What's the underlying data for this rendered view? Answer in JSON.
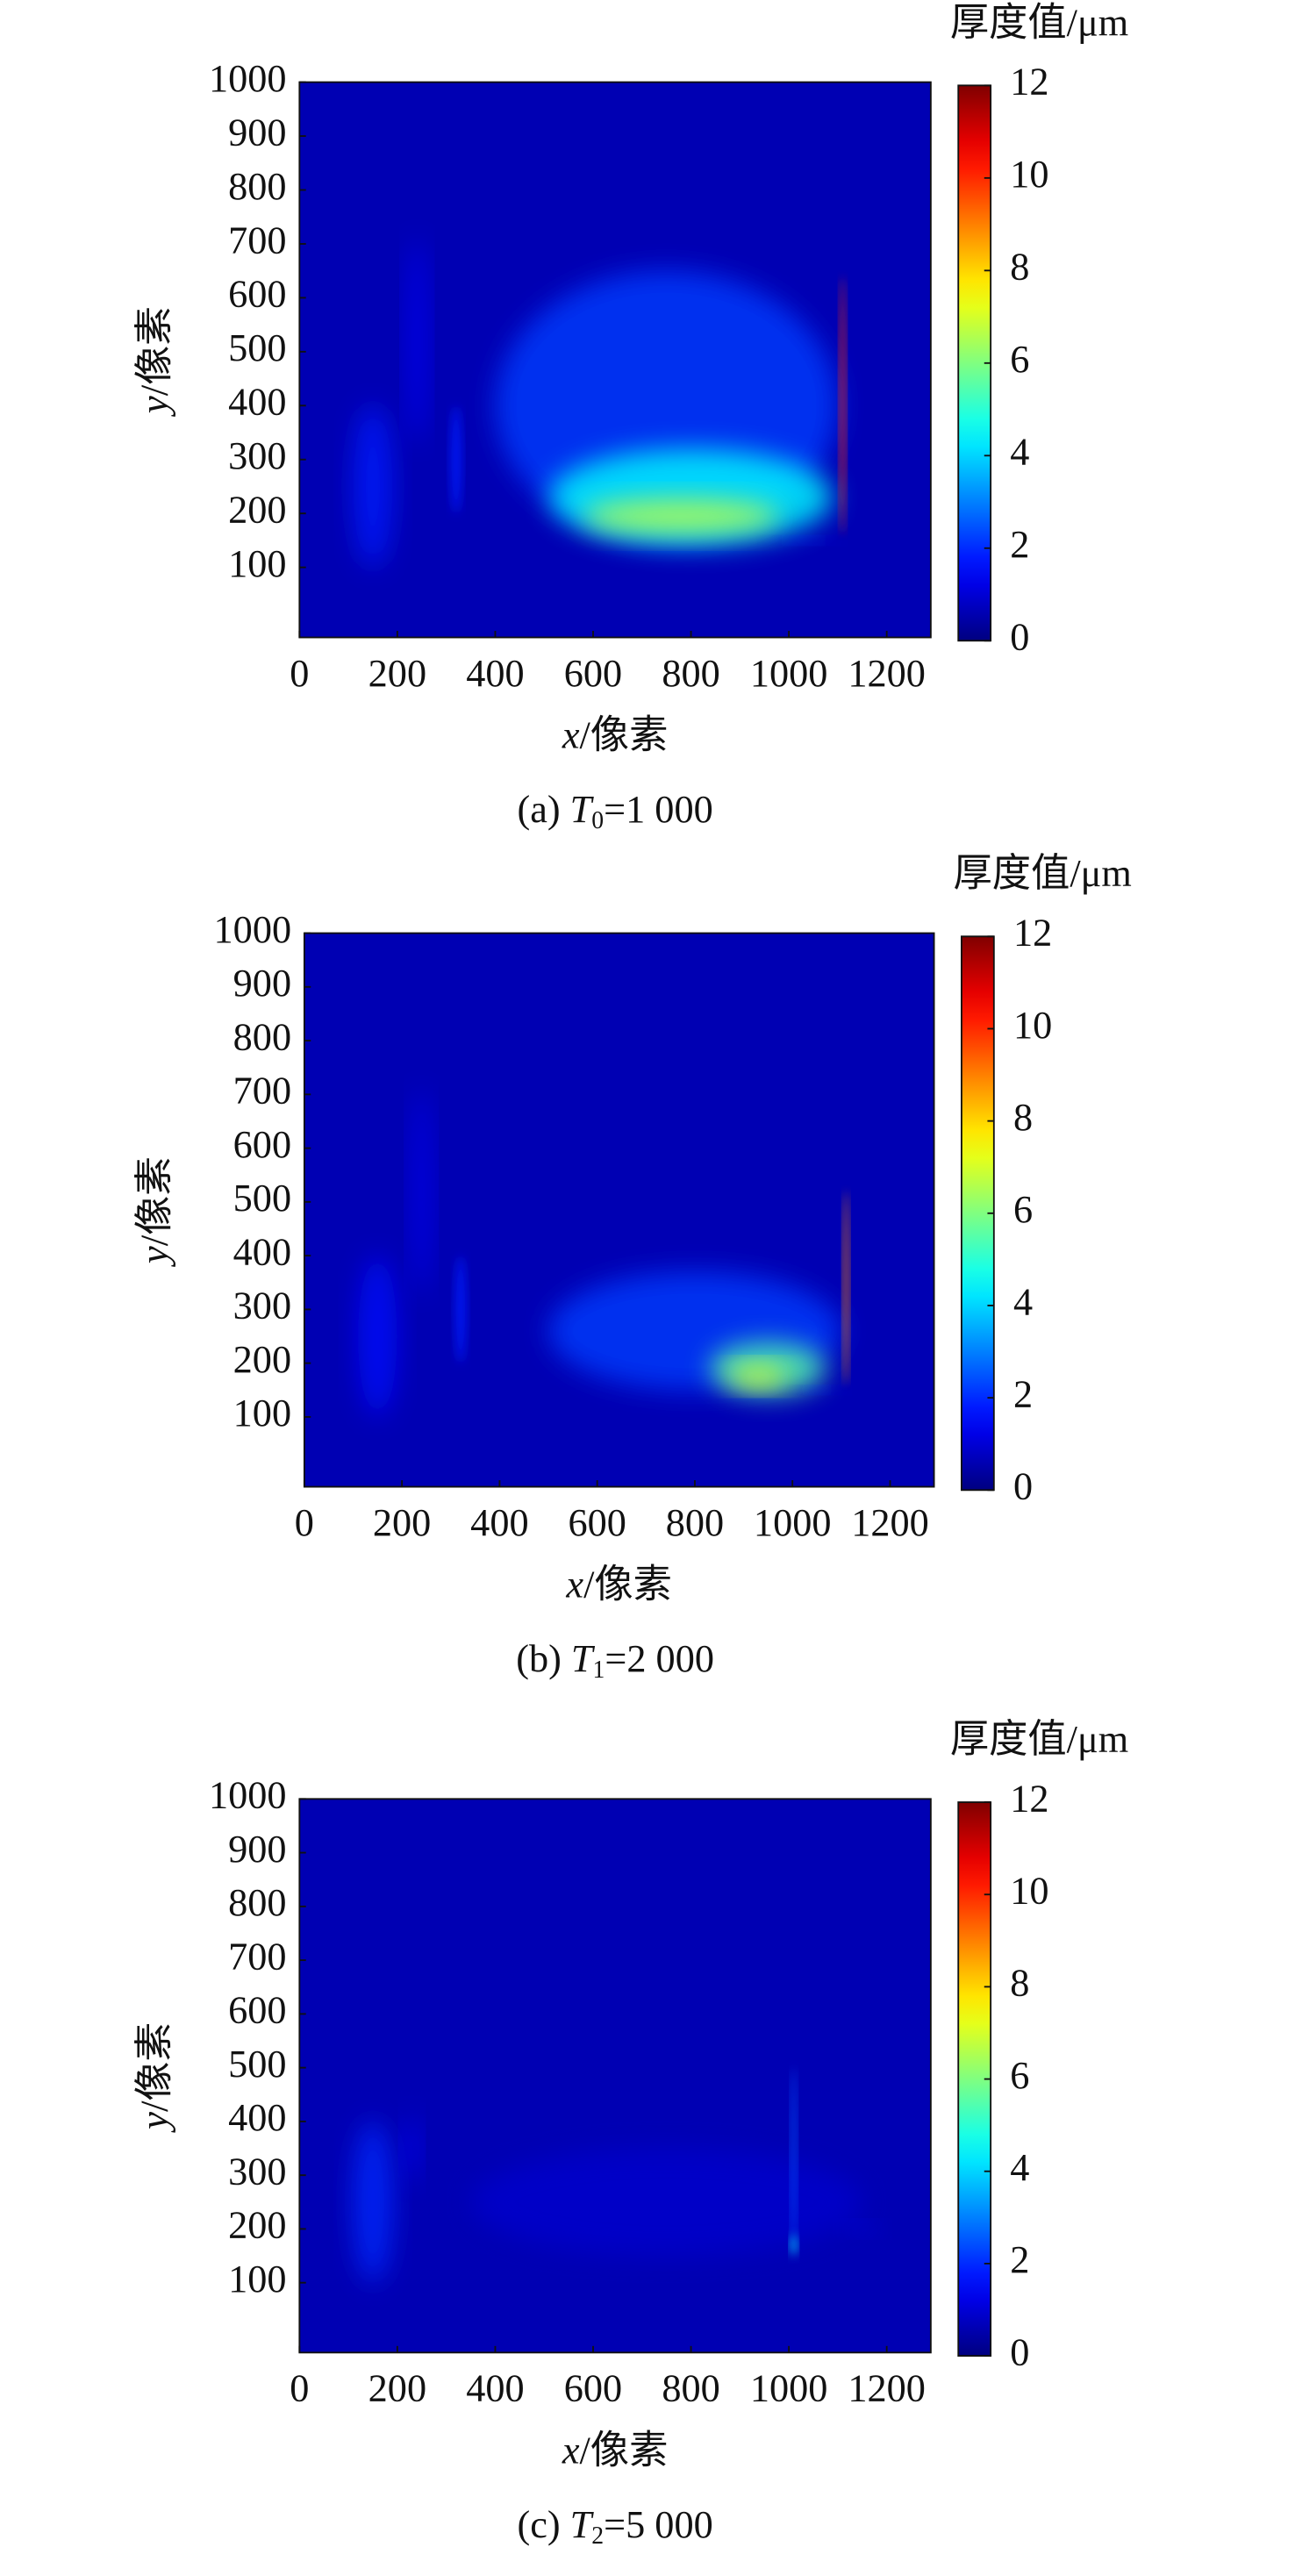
{
  "chart_data": [
    {
      "type": "heatmap",
      "colormap": "jet",
      "colorbar_title": "厚度值/μm",
      "x_label": {
        "var": "x",
        "unit": "/像素"
      },
      "y_label": {
        "var": "y",
        "unit": "/像素"
      },
      "caption": {
        "prefix": "(a) ",
        "symbol": "T",
        "subscript": "0",
        "value": "=1 000"
      },
      "xlim": [
        0,
        1290
      ],
      "ylim": [
        -30,
        1000
      ],
      "xticks": [
        0,
        200,
        400,
        600,
        800,
        1000,
        1200
      ],
      "yticks": [
        100,
        200,
        300,
        400,
        500,
        600,
        700,
        800,
        900,
        1000
      ],
      "clim": [
        0,
        12
      ],
      "cticks": [
        0,
        2,
        4,
        6,
        8,
        10,
        12
      ]
    },
    {
      "type": "heatmap",
      "colormap": "jet",
      "colorbar_title": "厚度值/μm",
      "x_label": {
        "var": "x",
        "unit": "/像素"
      },
      "y_label": {
        "var": "y",
        "unit": "/像素"
      },
      "caption": {
        "prefix": "(b) ",
        "symbol": "T",
        "subscript": "1",
        "value": "=2 000"
      },
      "xlim": [
        0,
        1290
      ],
      "ylim": [
        -30,
        1000
      ],
      "xticks": [
        0,
        200,
        400,
        600,
        800,
        1000,
        1200
      ],
      "yticks": [
        100,
        200,
        300,
        400,
        500,
        600,
        700,
        800,
        900,
        1000
      ],
      "clim": [
        0,
        12
      ],
      "cticks": [
        0,
        2,
        4,
        6,
        8,
        10,
        12
      ]
    },
    {
      "type": "heatmap",
      "colormap": "jet",
      "colorbar_title": "厚度值/μm",
      "x_label": {
        "var": "x",
        "unit": "/像素"
      },
      "y_label": {
        "var": "y",
        "unit": "/像素"
      },
      "caption": {
        "prefix": "(c) ",
        "symbol": "T",
        "subscript": "2",
        "value": "=5 000"
      },
      "xlim": [
        0,
        1290
      ],
      "ylim": [
        -30,
        1000
      ],
      "xticks": [
        0,
        200,
        400,
        600,
        800,
        1000,
        1200
      ],
      "yticks": [
        100,
        200,
        300,
        400,
        500,
        600,
        700,
        800,
        900,
        1000
      ],
      "clim": [
        0,
        12
      ],
      "cticks": [
        0,
        2,
        4,
        6,
        8,
        10,
        12
      ]
    }
  ]
}
